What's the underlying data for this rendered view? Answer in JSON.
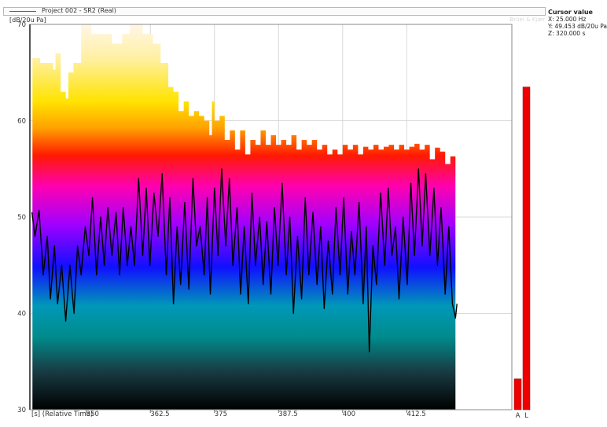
{
  "legend": {
    "series_name": "Project 002 - SR2 (Real)",
    "series_color": "#d03030"
  },
  "brand": "Brüel & Kjær",
  "y_unit": "[dB/20u Pa]",
  "cursor": {
    "title": "Cursor value",
    "x": "X: 25.000 Hz",
    "y": "Y: 49.453 dB/20u Pa",
    "z": "Z: 320.000 s"
  },
  "bars": {
    "labels": [
      "A",
      "L"
    ],
    "values": [
      33.2,
      63.5
    ],
    "color": "#ee0000"
  },
  "chart_data": {
    "type": "area",
    "x_axis_label": "[s] (Relative Time)",
    "x_ticks": [
      "350",
      "362.5",
      "375",
      "387.5",
      "400",
      "412.5"
    ],
    "y_ticks": [
      "30",
      "40",
      "50",
      "60",
      "70"
    ],
    "xlim": [
      339,
      433
    ],
    "ylim": [
      30,
      70
    ],
    "grid": true,
    "spectrogram_top": [
      [
        339.5,
        66.5
      ],
      [
        341,
        66
      ],
      [
        342.5,
        66
      ],
      [
        343.5,
        65.3
      ],
      [
        344,
        67
      ],
      [
        345,
        63
      ],
      [
        346,
        62.3
      ],
      [
        346.5,
        65
      ],
      [
        347.5,
        66
      ],
      [
        349,
        70
      ],
      [
        351,
        69
      ],
      [
        353,
        69
      ],
      [
        355,
        68
      ],
      [
        357,
        69
      ],
      [
        358.5,
        70
      ],
      [
        360,
        70
      ],
      [
        361,
        69
      ],
      [
        363,
        68
      ],
      [
        364.5,
        66
      ],
      [
        366,
        63.5
      ],
      [
        367,
        63
      ],
      [
        368,
        61
      ],
      [
        369,
        62
      ],
      [
        370,
        60.5
      ],
      [
        371,
        61
      ],
      [
        372,
        60.5
      ],
      [
        373,
        60
      ],
      [
        374,
        58.5
      ],
      [
        374.5,
        62
      ],
      [
        375,
        60
      ],
      [
        376,
        60.5
      ],
      [
        377,
        58
      ],
      [
        378,
        59
      ],
      [
        379,
        57
      ],
      [
        380,
        59
      ],
      [
        381,
        56.5
      ],
      [
        382,
        58
      ],
      [
        383,
        57.5
      ],
      [
        384,
        59
      ],
      [
        385,
        57.5
      ],
      [
        386,
        58.5
      ],
      [
        387,
        57.5
      ],
      [
        388,
        58
      ],
      [
        389,
        57.5
      ],
      [
        390,
        58.5
      ],
      [
        391,
        57
      ],
      [
        392,
        58
      ],
      [
        393,
        57.5
      ],
      [
        394,
        58
      ],
      [
        395,
        57
      ],
      [
        396,
        57.5
      ],
      [
        397,
        56.5
      ],
      [
        398,
        57
      ],
      [
        399,
        56.5
      ],
      [
        400,
        57.5
      ],
      [
        401,
        57
      ],
      [
        402,
        57.5
      ],
      [
        403,
        56.5
      ],
      [
        404,
        57.3
      ],
      [
        405,
        57
      ],
      [
        406,
        57.5
      ],
      [
        407,
        57
      ],
      [
        408,
        57.3
      ],
      [
        409,
        57.5
      ],
      [
        410,
        57
      ],
      [
        411,
        57.5
      ],
      [
        412,
        57
      ],
      [
        413,
        57.3
      ],
      [
        414,
        57.6
      ],
      [
        415,
        57
      ],
      [
        416,
        57.5
      ],
      [
        417,
        56
      ],
      [
        418,
        57.2
      ],
      [
        419,
        56.8
      ],
      [
        420,
        55.5
      ],
      [
        421,
        56.3
      ],
      [
        422,
        55.8
      ]
    ],
    "time_trace": [
      [
        339.4,
        50.5
      ],
      [
        340,
        48
      ],
      [
        340.8,
        50.7
      ],
      [
        341.6,
        44
      ],
      [
        342.4,
        48
      ],
      [
        343,
        41.5
      ],
      [
        343.8,
        47
      ],
      [
        344.4,
        41
      ],
      [
        345.2,
        45
      ],
      [
        346,
        39.2
      ],
      [
        346.8,
        45
      ],
      [
        347.6,
        40
      ],
      [
        348.3,
        47
      ],
      [
        349,
        44
      ],
      [
        349.8,
        49
      ],
      [
        350.5,
        46
      ],
      [
        351.2,
        52
      ],
      [
        352,
        44
      ],
      [
        352.8,
        50
      ],
      [
        353.5,
        45
      ],
      [
        354.2,
        51
      ],
      [
        355,
        46
      ],
      [
        355.8,
        50.5
      ],
      [
        356.5,
        44
      ],
      [
        357.2,
        51
      ],
      [
        358,
        45
      ],
      [
        358.7,
        49
      ],
      [
        359.4,
        45
      ],
      [
        360.2,
        54
      ],
      [
        361,
        46
      ],
      [
        361.7,
        53
      ],
      [
        362.4,
        45
      ],
      [
        363.2,
        52.5
      ],
      [
        364,
        48
      ],
      [
        364.8,
        54.5
      ],
      [
        365.6,
        44
      ],
      [
        366.3,
        52
      ],
      [
        367,
        41
      ],
      [
        367.7,
        49
      ],
      [
        368.4,
        43
      ],
      [
        369.2,
        51.5
      ],
      [
        370,
        42.5
      ],
      [
        370.8,
        54
      ],
      [
        371.5,
        47
      ],
      [
        372.2,
        49
      ],
      [
        373,
        44
      ],
      [
        373.6,
        52
      ],
      [
        374.2,
        42
      ],
      [
        375,
        53
      ],
      [
        375.7,
        46
      ],
      [
        376.4,
        55
      ],
      [
        377.2,
        47
      ],
      [
        377.9,
        54
      ],
      [
        378.6,
        45
      ],
      [
        379.4,
        51
      ],
      [
        380.1,
        42
      ],
      [
        380.8,
        49
      ],
      [
        381.6,
        41
      ],
      [
        382.3,
        52.5
      ],
      [
        383,
        45
      ],
      [
        383.8,
        50
      ],
      [
        384.5,
        43
      ],
      [
        385.2,
        49.5
      ],
      [
        386,
        42
      ],
      [
        386.7,
        51
      ],
      [
        387.4,
        45
      ],
      [
        388.2,
        53.5
      ],
      [
        389,
        44
      ],
      [
        389.7,
        50
      ],
      [
        390.4,
        40
      ],
      [
        391.2,
        48
      ],
      [
        392,
        41.5
      ],
      [
        392.7,
        52
      ],
      [
        393.4,
        44
      ],
      [
        394.2,
        50.5
      ],
      [
        395,
        43
      ],
      [
        395.7,
        49
      ],
      [
        396.4,
        40.5
      ],
      [
        397.2,
        47.5
      ],
      [
        398,
        42
      ],
      [
        398.7,
        51
      ],
      [
        399.5,
        44
      ],
      [
        400.2,
        52
      ],
      [
        401,
        42
      ],
      [
        401.7,
        48.5
      ],
      [
        402.4,
        44
      ],
      [
        403.2,
        51.5
      ],
      [
        404,
        41
      ],
      [
        404.6,
        49
      ],
      [
        405.2,
        36
      ],
      [
        405.9,
        47
      ],
      [
        406.6,
        43
      ],
      [
        407.4,
        52.5
      ],
      [
        408.2,
        45
      ],
      [
        408.9,
        53
      ],
      [
        409.6,
        46
      ],
      [
        410.3,
        49
      ],
      [
        411,
        41.5
      ],
      [
        411.8,
        50
      ],
      [
        412.6,
        43
      ],
      [
        413.3,
        53.5
      ],
      [
        414,
        46
      ],
      [
        414.8,
        55
      ],
      [
        415.5,
        47
      ],
      [
        416.2,
        54.5
      ],
      [
        417,
        46
      ],
      [
        417.8,
        53
      ],
      [
        418.5,
        45
      ],
      [
        419.2,
        51
      ],
      [
        420,
        42
      ],
      [
        420.7,
        49
      ],
      [
        421.4,
        41
      ],
      [
        422,
        39.5
      ],
      [
        422.3,
        41
      ]
    ]
  }
}
